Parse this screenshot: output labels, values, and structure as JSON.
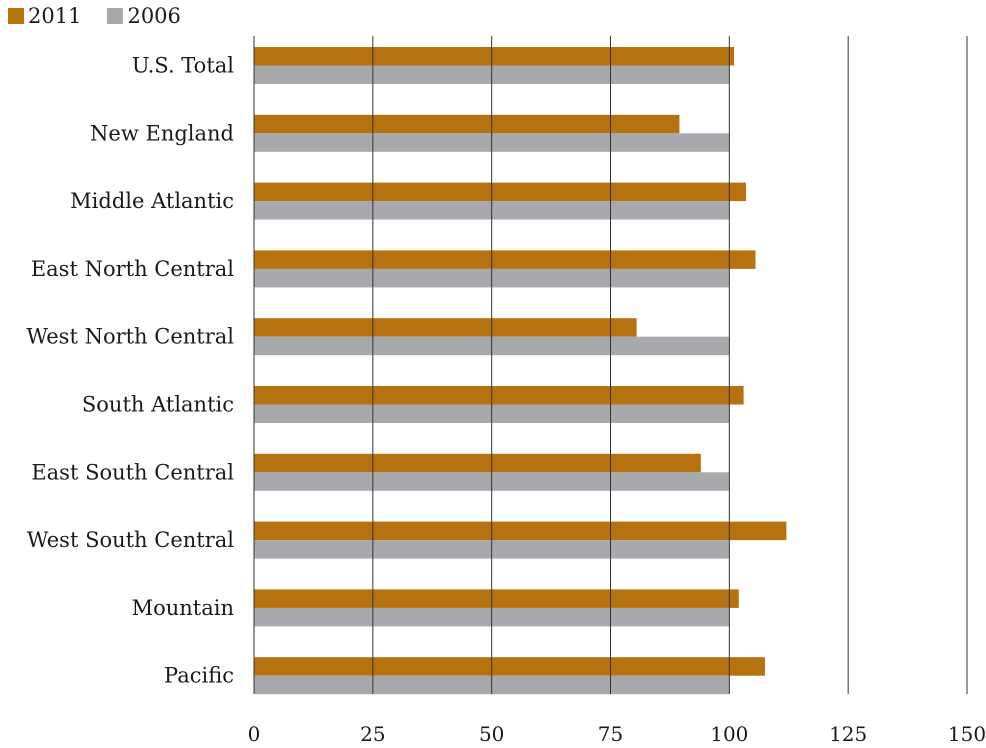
{
  "chart_data": {
    "type": "bar",
    "orientation": "horizontal",
    "categories": [
      "U.S. Total",
      "New England",
      "Middle Atlantic",
      "East North Central",
      "West North Central",
      "South Atlantic",
      "East South Central",
      "West South Central",
      "Mountain",
      "Pacific"
    ],
    "series": [
      {
        "name": "2011",
        "color": "#B5720E",
        "values": [
          101,
          89.5,
          103.5,
          105.5,
          80.5,
          103,
          94,
          112,
          102,
          107.5
        ]
      },
      {
        "name": "2006",
        "color": "#A8A9AD",
        "values": [
          100,
          100,
          100,
          100,
          100,
          100,
          100,
          100,
          100,
          100
        ]
      }
    ],
    "x_ticks": [
      "0",
      "25",
      "50",
      "75",
      "100",
      "125",
      "150"
    ],
    "xlim": [
      0,
      150
    ],
    "grid": "vertical",
    "legend_position": "top-left",
    "title": "",
    "xlabel": "",
    "ylabel": ""
  }
}
